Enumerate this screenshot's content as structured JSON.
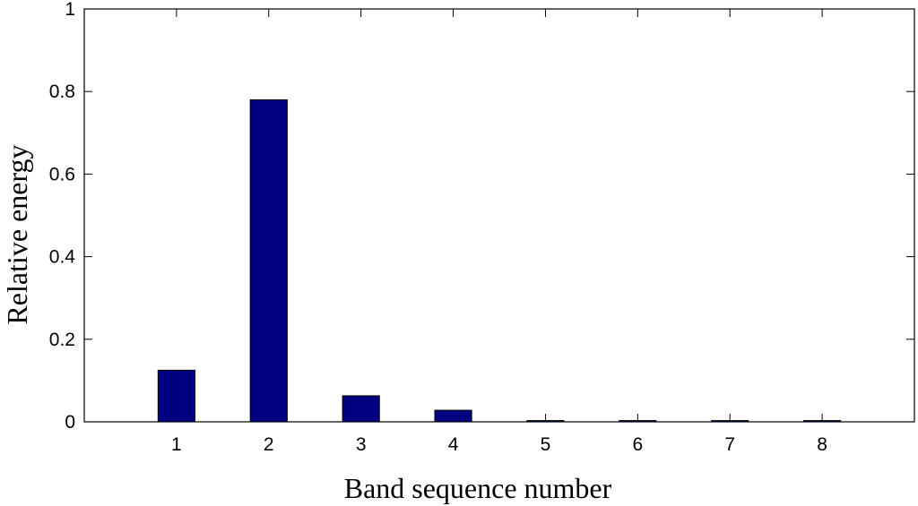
{
  "chart_data": {
    "type": "bar",
    "x": [
      1,
      2,
      3,
      4,
      5,
      6,
      7,
      8
    ],
    "values": [
      0.125,
      0.78,
      0.063,
      0.028,
      0.003,
      0.003,
      0.003,
      0.003
    ],
    "color": "#000080",
    "xlabel": "Band sequence number",
    "ylabel": "Relative energy",
    "xlim": [
      0,
      9
    ],
    "xticks": [
      1,
      2,
      3,
      4,
      5,
      6,
      7,
      8
    ],
    "ylim": [
      0,
      1
    ],
    "yticks": [
      0,
      0.2,
      0.4,
      0.6,
      0.8,
      1
    ],
    "grid": false
  }
}
